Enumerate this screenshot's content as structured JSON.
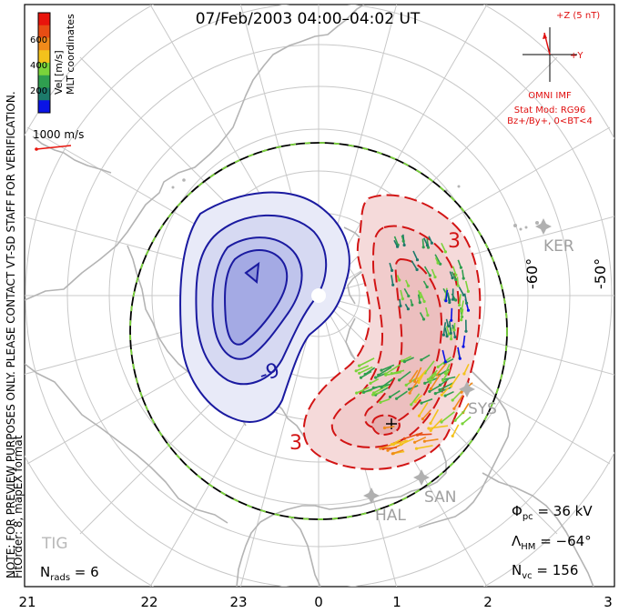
{
  "title": "07/Feb/2003 04:00–04:02 UT",
  "side_note": "NOTE: FOR PREVIEW PURPOSES ONLY. PLEASE CONTACT VT-SD STAFF FOR VERIFICATION.",
  "fit_note": "FitOrder: 8, mapEX format",
  "coord_label": "MLT coordinates",
  "colorbar": {
    "label": "Vel [m/s]",
    "ticks": [
      "200",
      "400",
      "600"
    ],
    "colors": [
      "#0a14e6",
      "#1c7a6a",
      "#2f9e4f",
      "#7ad33a",
      "#f3c21c",
      "#f08a1a",
      "#e84d14",
      "#e8140c"
    ]
  },
  "ref_vector": "1000 m/s",
  "imf": {
    "z_label": "+Z (5 nT)",
    "y_label": "+Y",
    "source": "OMNI IMF",
    "model": "Stat Mod: RG96",
    "condition": "Bz+/By+, 0<BT<4",
    "color": "#e01010"
  },
  "stations": [
    "KER",
    "SYS",
    "HAL",
    "SAN",
    "TIG"
  ],
  "lat_labels": [
    "-60°",
    "-50°"
  ],
  "contour_labels": {
    "neg": "-9",
    "pos": "3",
    "pos2": "3"
  },
  "bottom_axis": [
    "21",
    "22",
    "23",
    "0",
    "1",
    "2",
    "3"
  ],
  "stats": {
    "phi_pc": "36 kV",
    "lambda_hm": "−64°",
    "n_vc": "156",
    "n_rads": "6"
  }
}
